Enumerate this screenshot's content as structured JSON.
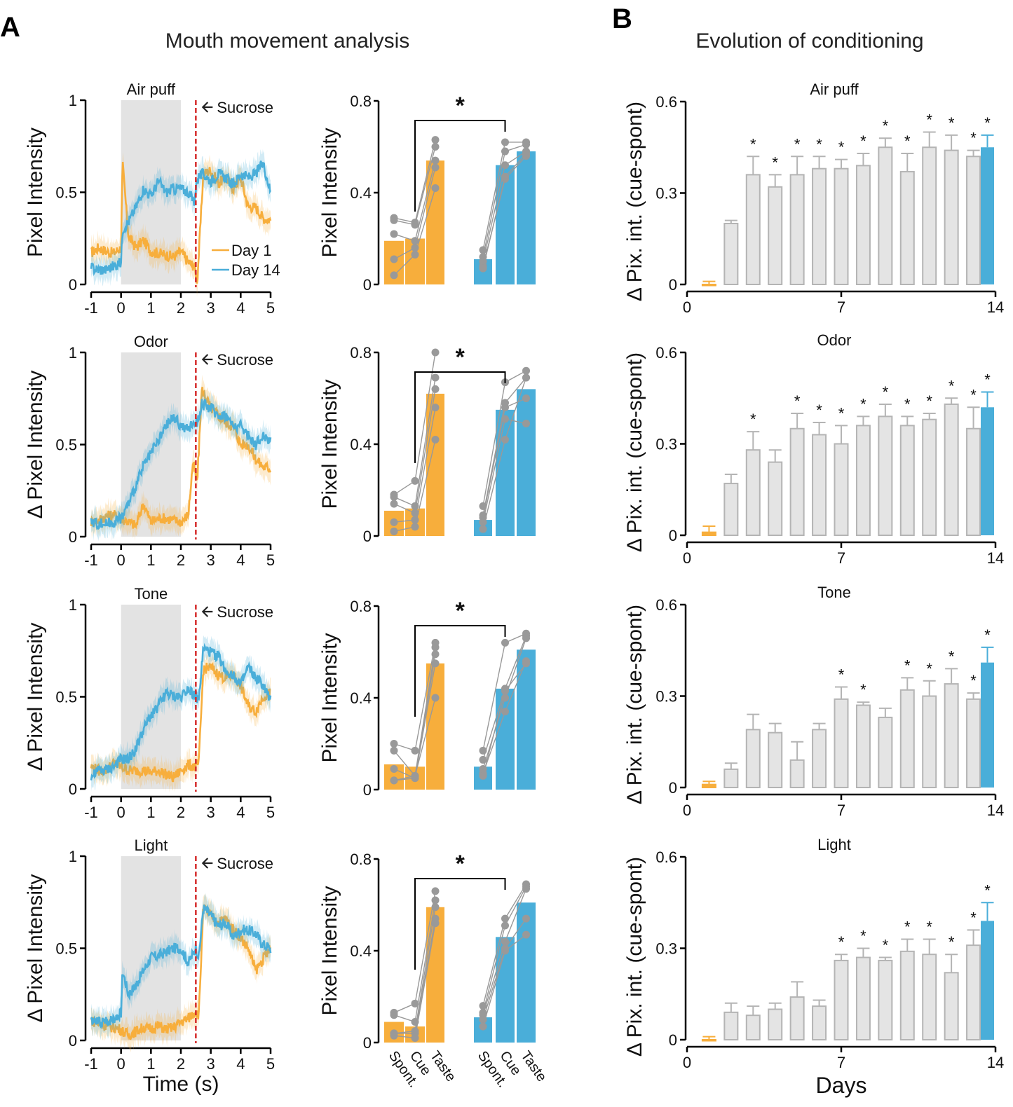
{
  "figure": {
    "panel_a_letter": "A",
    "panel_b_letter": "B",
    "panel_a_title": "Mouth movement analysis",
    "panel_b_title": "Evolution of conditioning",
    "colors": {
      "day1": "#f7ae3c",
      "day14": "#4aaed9",
      "gray_bar": "#e4e4e4",
      "gray_bar_edge": "#b4b4b4",
      "cue_window": "#e3e3e3",
      "sucrose_line": "#d42a2a",
      "dots": "#999999"
    }
  },
  "chart_data": [
    {
      "id": "trace-air-puff",
      "type": "line",
      "title": "Air puff",
      "xlabel": "",
      "ylabel": "Pixel Intensity",
      "xlim": [
        -1,
        5
      ],
      "ylim": [
        0,
        1
      ],
      "xticks": [
        "-1",
        "0",
        "1",
        "2",
        "3",
        "4",
        "5"
      ],
      "yticks": [
        "0",
        "0.5",
        "1"
      ],
      "cue_window": [
        0,
        2
      ],
      "sucrose_time": 2.5,
      "sucrose_label": "Sucrose",
      "legend": [
        "Day 1",
        "Day 14"
      ],
      "legend_position": "right-bottom",
      "x": [
        -1,
        -0.75,
        -0.5,
        -0.25,
        0,
        0.05,
        0.25,
        0.5,
        0.75,
        1,
        1.25,
        1.5,
        1.75,
        2,
        2.25,
        2.45,
        2.55,
        2.75,
        3,
        3.25,
        3.5,
        3.75,
        4,
        4.25,
        4.5,
        4.75,
        5
      ],
      "series": [
        {
          "name": "Day 1",
          "values": [
            0.17,
            0.2,
            0.18,
            0.17,
            0.2,
            0.66,
            0.26,
            0.2,
            0.24,
            0.18,
            0.17,
            0.16,
            0.15,
            0.18,
            0.12,
            0.1,
            0.02,
            0.6,
            0.62,
            0.55,
            0.58,
            0.52,
            0.58,
            0.42,
            0.42,
            0.36,
            0.35
          ]
        },
        {
          "name": "Day 14",
          "values": [
            0.09,
            0.08,
            0.08,
            0.1,
            0.12,
            0.3,
            0.34,
            0.42,
            0.52,
            0.48,
            0.56,
            0.5,
            0.52,
            0.52,
            0.5,
            0.45,
            0.58,
            0.6,
            0.56,
            0.6,
            0.58,
            0.54,
            0.6,
            0.58,
            0.6,
            0.66,
            0.5
          ]
        }
      ]
    },
    {
      "id": "trace-odor",
      "type": "line",
      "title": "Odor",
      "ylabel": "Δ Pixel Intensity",
      "xlim": [
        -1,
        5
      ],
      "ylim": [
        0,
        1
      ],
      "xticks": [
        "-1",
        "0",
        "1",
        "2",
        "3",
        "4",
        "5"
      ],
      "yticks": [
        "0",
        "0.5",
        "1"
      ],
      "cue_window": [
        0,
        2
      ],
      "sucrose_time": 2.5,
      "sucrose_label": "Sucrose",
      "x": [
        -1,
        -0.75,
        -0.5,
        -0.25,
        0,
        0.25,
        0.5,
        0.75,
        1,
        1.25,
        1.5,
        1.75,
        2,
        2.25,
        2.4,
        2.55,
        2.7,
        3,
        3.25,
        3.5,
        3.75,
        4,
        4.25,
        4.5,
        4.75,
        5
      ],
      "series": [
        {
          "name": "Day 1",
          "values": [
            0.08,
            0.09,
            0.11,
            0.12,
            0.1,
            0.08,
            0.06,
            0.18,
            0.08,
            0.1,
            0.1,
            0.09,
            0.08,
            0.12,
            0.4,
            0.3,
            0.8,
            0.7,
            0.66,
            0.62,
            0.6,
            0.5,
            0.5,
            0.42,
            0.38,
            0.37
          ]
        },
        {
          "name": "Day 14",
          "values": [
            0.08,
            0.07,
            0.07,
            0.08,
            0.1,
            0.18,
            0.28,
            0.38,
            0.45,
            0.52,
            0.6,
            0.65,
            0.6,
            0.58,
            0.62,
            0.62,
            0.72,
            0.7,
            0.66,
            0.66,
            0.6,
            0.6,
            0.55,
            0.5,
            0.55,
            0.52
          ]
        }
      ]
    },
    {
      "id": "trace-tone",
      "type": "line",
      "title": "Tone",
      "ylabel": "Δ Pixel Intensity",
      "xlim": [
        -1,
        5
      ],
      "ylim": [
        0,
        1
      ],
      "xticks": [
        "-1",
        "0",
        "1",
        "2",
        "3",
        "4",
        "5"
      ],
      "yticks": [
        "0",
        "0.5",
        "1"
      ],
      "cue_window": [
        0,
        2
      ],
      "sucrose_time": 2.5,
      "sucrose_label": "Sucrose",
      "x": [
        -1,
        -0.75,
        -0.5,
        -0.25,
        0,
        0.25,
        0.5,
        0.75,
        1,
        1.25,
        1.5,
        1.75,
        2,
        2.25,
        2.5,
        2.6,
        2.75,
        3,
        3.25,
        3.5,
        3.75,
        4,
        4.25,
        4.5,
        4.75,
        5
      ],
      "series": [
        {
          "name": "Day 1",
          "values": [
            0.12,
            0.1,
            0.1,
            0.14,
            0.12,
            0.1,
            0.1,
            0.1,
            0.09,
            0.1,
            0.08,
            0.06,
            0.1,
            0.13,
            0.12,
            0.14,
            0.65,
            0.66,
            0.62,
            0.6,
            0.62,
            0.56,
            0.45,
            0.42,
            0.5,
            0.52
          ]
        },
        {
          "name": "Day 14",
          "values": [
            0.06,
            0.1,
            0.1,
            0.12,
            0.16,
            0.16,
            0.22,
            0.32,
            0.4,
            0.45,
            0.52,
            0.5,
            0.5,
            0.55,
            0.5,
            0.48,
            0.76,
            0.74,
            0.72,
            0.64,
            0.62,
            0.56,
            0.66,
            0.6,
            0.56,
            0.48
          ]
        }
      ]
    },
    {
      "id": "trace-light",
      "type": "line",
      "title": "Light",
      "xlabel": "Time (s)",
      "ylabel": "Δ Pixel Intensity",
      "xlim": [
        -1,
        5
      ],
      "ylim": [
        0,
        1
      ],
      "xticks": [
        "-1",
        "0",
        "1",
        "2",
        "3",
        "4",
        "5"
      ],
      "yticks": [
        "0",
        "0.5",
        "1"
      ],
      "cue_window": [
        0,
        2
      ],
      "sucrose_time": 2.5,
      "sucrose_label": "Sucrose",
      "x": [
        -1,
        -0.75,
        -0.5,
        -0.25,
        0,
        0.05,
        0.25,
        0.5,
        0.75,
        1,
        1.25,
        1.5,
        1.75,
        2,
        2.25,
        2.5,
        2.6,
        2.75,
        3,
        3.25,
        3.5,
        3.75,
        4,
        4.25,
        4.5,
        4.75,
        5
      ],
      "series": [
        {
          "name": "Day 1",
          "values": [
            0.11,
            0.09,
            0.08,
            0.07,
            0.06,
            0.05,
            0.03,
            0.05,
            0.07,
            0.06,
            0.08,
            0.06,
            0.07,
            0.1,
            0.12,
            0.16,
            0.14,
            0.72,
            0.68,
            0.64,
            0.66,
            0.6,
            0.56,
            0.5,
            0.38,
            0.44,
            0.5
          ]
        },
        {
          "name": "Day 14",
          "values": [
            0.1,
            0.1,
            0.1,
            0.12,
            0.15,
            0.38,
            0.25,
            0.3,
            0.38,
            0.45,
            0.46,
            0.48,
            0.5,
            0.5,
            0.42,
            0.5,
            0.45,
            0.72,
            0.68,
            0.62,
            0.64,
            0.56,
            0.6,
            0.6,
            0.58,
            0.52,
            0.5
          ]
        }
      ]
    },
    {
      "id": "bars-air-puff",
      "type": "bar",
      "ylabel": "Pixel Intensity",
      "ylim": [
        0,
        0.8
      ],
      "yticks": [
        "0",
        "0.4",
        "0.8"
      ],
      "categories": [
        "Spont.",
        "Cue",
        "Taste",
        "Spont.",
        "Cue",
        "Taste"
      ],
      "groups": [
        "Day 1",
        "Day 1",
        "Day 1",
        "Day 14",
        "Day 14",
        "Day 14"
      ],
      "values": [
        0.19,
        0.2,
        0.54,
        0.11,
        0.52,
        0.58
      ],
      "points": [
        [
          0.29,
          0.28,
          0.22,
          0.11,
          0.04
        ],
        [
          0.27,
          0.26,
          0.19,
          0.16,
          0.13
        ],
        [
          0.63,
          0.6,
          0.54,
          0.51,
          0.42
        ],
        [
          0.15,
          0.12,
          0.1,
          0.08,
          0.07
        ],
        [
          0.62,
          0.58,
          0.52,
          0.46,
          0.47
        ],
        [
          0.62,
          0.61,
          0.58,
          0.56,
          0.57
        ]
      ],
      "significance": "*"
    },
    {
      "id": "bars-odor",
      "type": "bar",
      "ylabel": "Pixel Intensity",
      "ylim": [
        0,
        0.8
      ],
      "yticks": [
        "0",
        "0.4",
        "0.8"
      ],
      "categories": [
        "Spont.",
        "Cue",
        "Taste",
        "Spont.",
        "Cue",
        "Taste"
      ],
      "groups": [
        "Day 1",
        "Day 1",
        "Day 1",
        "Day 14",
        "Day 14",
        "Day 14"
      ],
      "values": [
        0.11,
        0.12,
        0.62,
        0.07,
        0.55,
        0.64
      ],
      "points": [
        [
          0.18,
          0.17,
          0.14,
          0.06,
          0.02
        ],
        [
          0.24,
          0.13,
          0.1,
          0.07,
          0.04
        ],
        [
          0.8,
          0.69,
          0.64,
          0.56,
          0.42
        ],
        [
          0.13,
          0.09,
          0.08,
          0.06,
          0.03
        ],
        [
          0.67,
          0.58,
          0.56,
          0.51,
          0.42
        ],
        [
          0.72,
          0.69,
          0.6,
          0.49,
          0.69
        ]
      ],
      "significance": "*"
    },
    {
      "id": "bars-tone",
      "type": "bar",
      "ylabel": "Pixel Intensity",
      "ylim": [
        0,
        0.8
      ],
      "yticks": [
        "0",
        "0.4",
        "0.8"
      ],
      "categories": [
        "Spont.",
        "Cue",
        "Taste",
        "Spont.",
        "Cue",
        "Taste"
      ],
      "groups": [
        "Day 1",
        "Day 1",
        "Day 1",
        "Day 14",
        "Day 14",
        "Day 14"
      ],
      "values": [
        0.11,
        0.1,
        0.55,
        0.1,
        0.44,
        0.61
      ],
      "points": [
        [
          0.2,
          0.17,
          0.09,
          0.04,
          0.04
        ],
        [
          0.17,
          0.06,
          0.05,
          0.05,
          0.06
        ],
        [
          0.64,
          0.62,
          0.59,
          0.55,
          0.4
        ],
        [
          0.17,
          0.13,
          0.09,
          0.07,
          0.06
        ],
        [
          0.64,
          0.44,
          0.4,
          0.34,
          0.43
        ],
        [
          0.68,
          0.67,
          0.66,
          0.56,
          0.55
        ]
      ],
      "significance": "*"
    },
    {
      "id": "bars-light",
      "type": "bar",
      "ylabel": "Pixel Intensity",
      "ylim": [
        0,
        0.8
      ],
      "yticks": [
        "0",
        "0.4",
        "0.8"
      ],
      "categories": [
        "Spont.",
        "Cue",
        "Taste",
        "Spont.",
        "Cue",
        "Taste"
      ],
      "groups": [
        "Day 1",
        "Day 1",
        "Day 1",
        "Day 14",
        "Day 14",
        "Day 14"
      ],
      "values": [
        0.09,
        0.07,
        0.59,
        0.11,
        0.46,
        0.61
      ],
      "points": [
        [
          0.13,
          0.12,
          0.04,
          0.04,
          0.03
        ],
        [
          0.17,
          0.09,
          0.05,
          0.04,
          0.02
        ],
        [
          0.66,
          0.62,
          0.59,
          0.54,
          0.52
        ],
        [
          0.16,
          0.13,
          0.12,
          0.1,
          0.07
        ],
        [
          0.54,
          0.51,
          0.44,
          0.41,
          0.4
        ],
        [
          0.69,
          0.68,
          0.67,
          0.54,
          0.47
        ]
      ],
      "significance": "*"
    },
    {
      "id": "evolution-air-puff",
      "type": "bar",
      "title": "Air puff",
      "xlabel": "",
      "ylabel": "Δ Pix. int. (cue-spont)",
      "xlim": [
        0,
        14
      ],
      "ylim": [
        0,
        0.6
      ],
      "xticks": [
        "0",
        "7",
        "14"
      ],
      "yticks": [
        "0",
        "0.3",
        "0.6"
      ],
      "days": [
        1,
        2,
        3,
        4,
        5,
        6,
        7,
        8,
        9,
        10,
        11,
        12,
        13,
        14
      ],
      "values": [
        0.0,
        0.2,
        0.36,
        0.32,
        0.36,
        0.38,
        0.38,
        0.39,
        0.45,
        0.37,
        0.45,
        0.44,
        0.42,
        0.45
      ],
      "errors": [
        0.01,
        0.01,
        0.06,
        0.04,
        0.06,
        0.04,
        0.03,
        0.04,
        0.03,
        0.06,
        0.05,
        0.05,
        0.02,
        0.04
      ],
      "significant": [
        false,
        false,
        true,
        true,
        true,
        true,
        true,
        true,
        true,
        true,
        true,
        true,
        true,
        true
      ]
    },
    {
      "id": "evolution-odor",
      "type": "bar",
      "title": "Odor",
      "ylabel": "Δ Pix. int. (cue-spont)",
      "xlim": [
        0,
        14
      ],
      "ylim": [
        0,
        0.6
      ],
      "xticks": [
        "0",
        "7",
        "14"
      ],
      "yticks": [
        "0",
        "0.3",
        "0.6"
      ],
      "days": [
        1,
        2,
        3,
        4,
        5,
        6,
        7,
        8,
        9,
        10,
        11,
        12,
        13,
        14
      ],
      "values": [
        0.01,
        0.17,
        0.28,
        0.24,
        0.35,
        0.33,
        0.3,
        0.36,
        0.39,
        0.36,
        0.38,
        0.43,
        0.35,
        0.42
      ],
      "errors": [
        0.02,
        0.03,
        0.06,
        0.04,
        0.05,
        0.04,
        0.06,
        0.03,
        0.04,
        0.03,
        0.02,
        0.02,
        0.07,
        0.05
      ],
      "significant": [
        false,
        false,
        true,
        false,
        true,
        true,
        true,
        true,
        true,
        true,
        true,
        true,
        true,
        true
      ]
    },
    {
      "id": "evolution-tone",
      "type": "bar",
      "title": "Tone",
      "ylabel": "Δ Pix. int. (cue-spont)",
      "xlim": [
        0,
        14
      ],
      "ylim": [
        0,
        0.6
      ],
      "xticks": [
        "0",
        "7",
        "14"
      ],
      "yticks": [
        "0",
        "0.3",
        "0.6"
      ],
      "days": [
        1,
        2,
        3,
        4,
        5,
        6,
        7,
        8,
        9,
        10,
        11,
        12,
        13,
        14
      ],
      "values": [
        0.01,
        0.06,
        0.19,
        0.18,
        0.09,
        0.19,
        0.29,
        0.27,
        0.23,
        0.32,
        0.3,
        0.34,
        0.29,
        0.41
      ],
      "errors": [
        0.01,
        0.02,
        0.05,
        0.03,
        0.06,
        0.02,
        0.04,
        0.01,
        0.03,
        0.04,
        0.05,
        0.05,
        0.02,
        0.05
      ],
      "significant": [
        false,
        false,
        false,
        false,
        false,
        false,
        true,
        true,
        false,
        true,
        true,
        true,
        true,
        true
      ]
    },
    {
      "id": "evolution-light",
      "type": "bar",
      "title": "Light",
      "xlabel": "Days",
      "ylabel": "Δ Pix. int. (cue-spont)",
      "xlim": [
        0,
        14
      ],
      "ylim": [
        0,
        0.6
      ],
      "xticks": [
        "0",
        "7",
        "14"
      ],
      "yticks": [
        "0",
        "0.3",
        "0.6"
      ],
      "days": [
        1,
        2,
        3,
        4,
        5,
        6,
        7,
        8,
        9,
        10,
        11,
        12,
        13,
        14
      ],
      "values": [
        0.0,
        0.09,
        0.08,
        0.1,
        0.14,
        0.11,
        0.26,
        0.27,
        0.26,
        0.29,
        0.28,
        0.22,
        0.31,
        0.39
      ],
      "errors": [
        0.01,
        0.03,
        0.03,
        0.02,
        0.05,
        0.02,
        0.02,
        0.03,
        0.01,
        0.04,
        0.05,
        0.06,
        0.05,
        0.06
      ],
      "significant": [
        false,
        false,
        false,
        false,
        false,
        false,
        true,
        true,
        true,
        true,
        true,
        true,
        true,
        true
      ]
    }
  ]
}
